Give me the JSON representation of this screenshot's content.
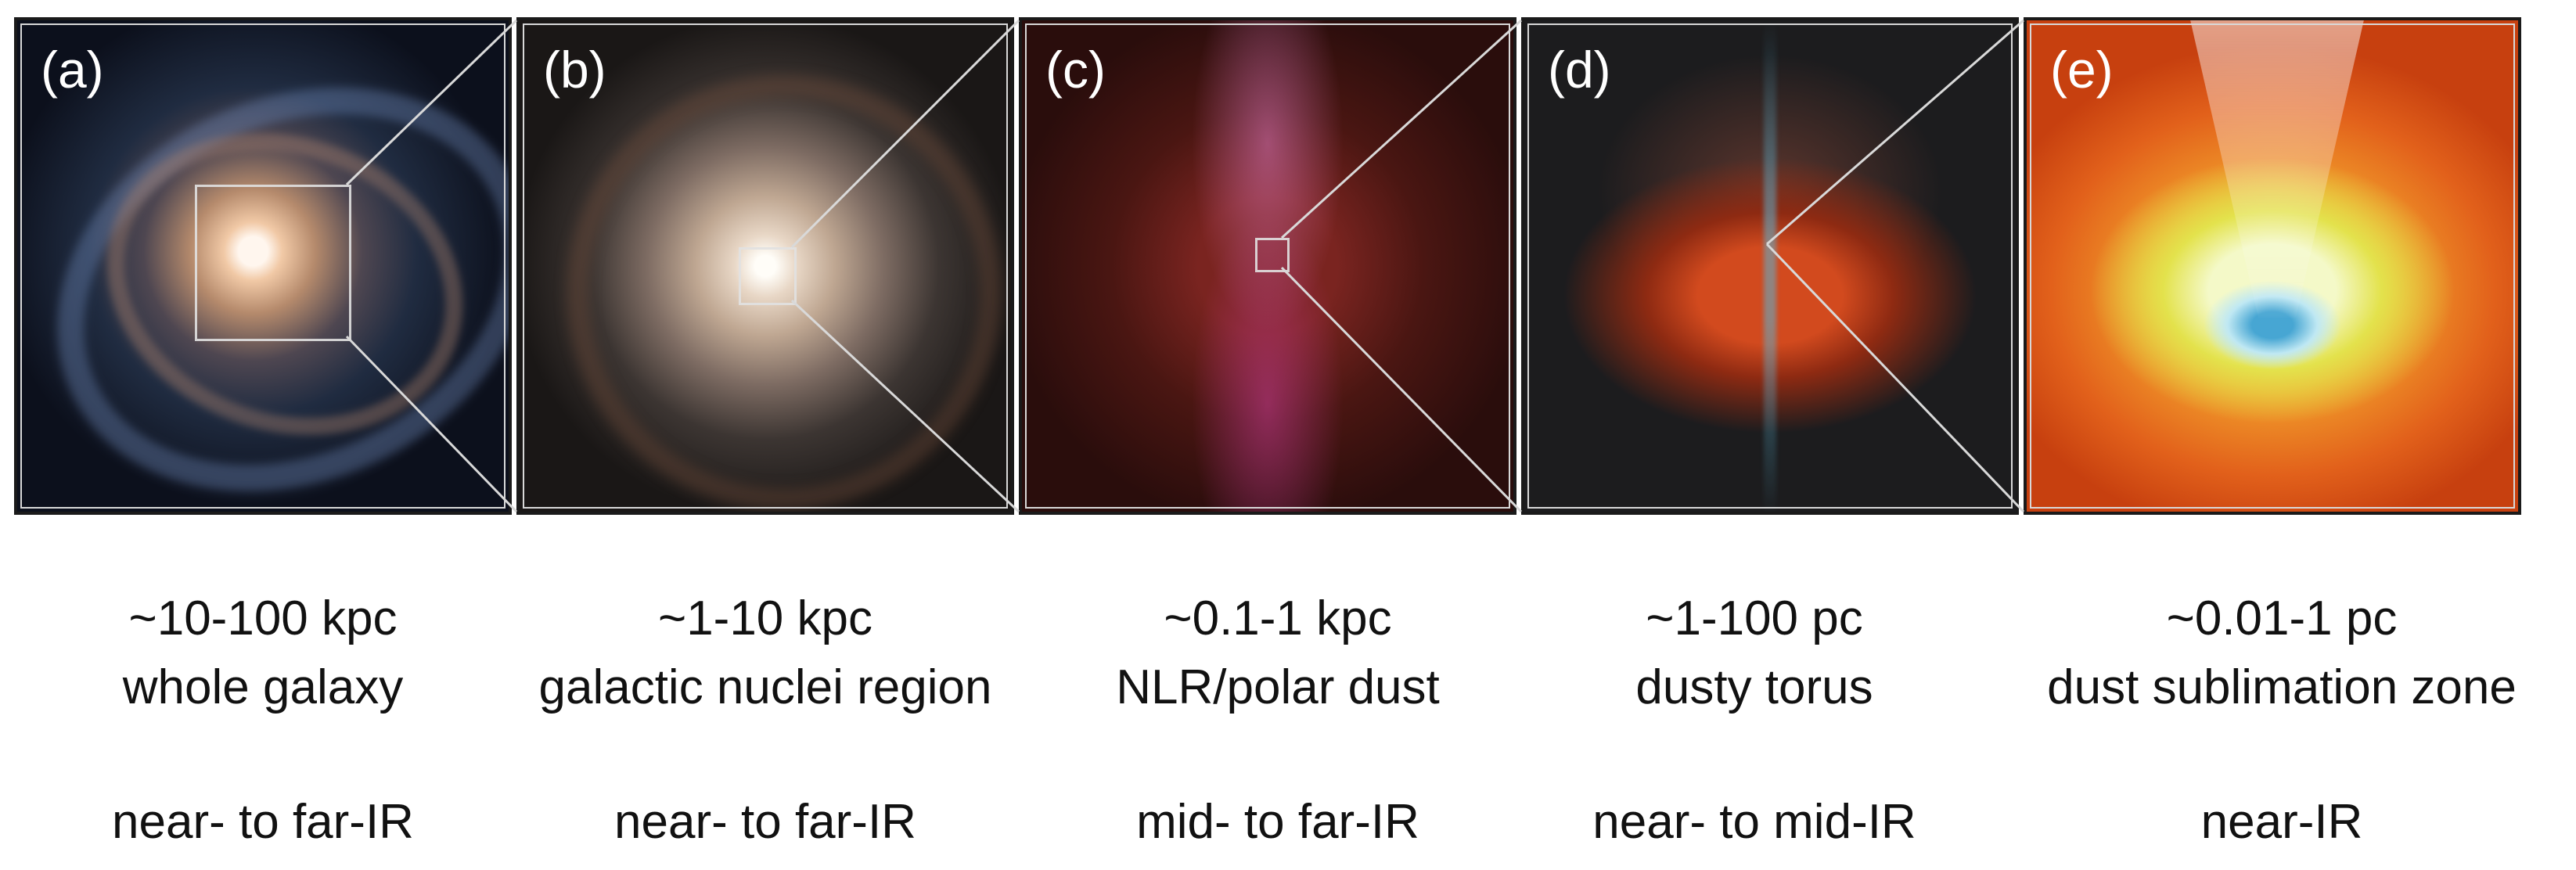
{
  "panels": [
    {
      "letter": "(a)",
      "scale": "~10-100 kpc",
      "region": "whole galaxy",
      "band": "near- to far-IR"
    },
    {
      "letter": "(b)",
      "scale": "~1-10 kpc",
      "region": "galactic nuclei region",
      "band": "near- to far-IR"
    },
    {
      "letter": "(c)",
      "scale": "~0.1-1 kpc",
      "region": "NLR/polar dust",
      "band": "mid- to far-IR"
    },
    {
      "letter": "(d)",
      "scale": "~1-100 pc",
      "region": "dusty torus",
      "band": "near- to mid-IR"
    },
    {
      "letter": "(e)",
      "scale": "~0.01-1 pc",
      "region": "dust sublimation zone",
      "band": "near-IR"
    }
  ],
  "colors": {
    "frame": "#1a1a1a",
    "zoom_lines": "#d9d9d9",
    "label": "#ffffff",
    "caption": "#111111"
  }
}
